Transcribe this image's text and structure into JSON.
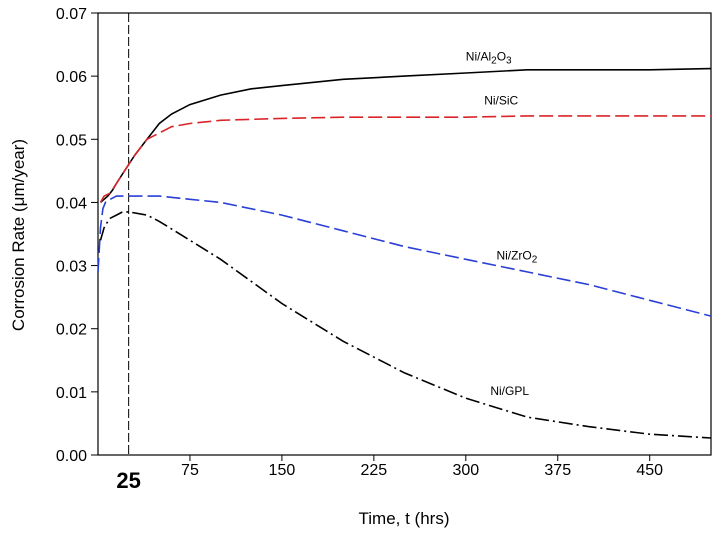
{
  "chart_data": {
    "type": "line",
    "xlabel": "Time, t (hrs)",
    "ylabel": "Corrosion Rate (μm/year)",
    "xlim": [
      0,
      500
    ],
    "ylim": [
      0,
      0.07
    ],
    "x_ticks": [
      75,
      150,
      225,
      300,
      375,
      450
    ],
    "y_ticks": [
      "0.00",
      "0.01",
      "0.02",
      "0.03",
      "0.04",
      "0.05",
      "0.06",
      "0.07"
    ],
    "grid": false,
    "marker_line": {
      "x": 25,
      "label": "25"
    },
    "series": [
      {
        "name": "Ni/Al2O3",
        "color": "#000000",
        "style": "solid",
        "x": [
          2,
          5,
          8,
          10,
          12,
          15,
          20,
          25,
          30,
          40,
          50,
          60,
          75,
          100,
          125,
          150,
          200,
          250,
          300,
          350,
          400,
          450,
          500
        ],
        "y": [
          0.04,
          0.0405,
          0.041,
          0.0415,
          0.042,
          0.043,
          0.0445,
          0.046,
          0.0475,
          0.05,
          0.0525,
          0.054,
          0.0555,
          0.057,
          0.058,
          0.0585,
          0.0595,
          0.06,
          0.0605,
          0.061,
          0.061,
          0.061,
          0.0612
        ]
      },
      {
        "name": "Ni/SiC",
        "color": "#d9252a",
        "style": "dashed",
        "x": [
          2,
          5,
          10,
          15,
          20,
          25,
          30,
          40,
          50,
          60,
          75,
          100,
          150,
          200,
          250,
          300,
          350,
          400,
          450,
          500
        ],
        "y": [
          0.04,
          0.041,
          0.0415,
          0.043,
          0.0445,
          0.046,
          0.0475,
          0.05,
          0.051,
          0.052,
          0.0525,
          0.053,
          0.0533,
          0.0535,
          0.0535,
          0.0535,
          0.0537,
          0.0537,
          0.0537,
          0.0537
        ]
      },
      {
        "name": "Ni/ZrO2",
        "color": "#2a3fd6",
        "style": "dashed",
        "x": [
          0,
          2,
          4,
          6,
          10,
          15,
          20,
          30,
          50,
          75,
          100,
          150,
          200,
          250,
          300,
          350,
          400,
          450,
          500
        ],
        "y": [
          0.029,
          0.036,
          0.039,
          0.04,
          0.0405,
          0.041,
          0.041,
          0.041,
          0.041,
          0.0405,
          0.04,
          0.038,
          0.0355,
          0.033,
          0.031,
          0.029,
          0.027,
          0.0245,
          0.022
        ]
      },
      {
        "name": "Ni/GPL",
        "color": "#000000",
        "style": "dashdot",
        "x": [
          2,
          5,
          8,
          10,
          15,
          20,
          25,
          40,
          50,
          75,
          100,
          150,
          200,
          250,
          300,
          350,
          400,
          450,
          500
        ],
        "y": [
          0.034,
          0.036,
          0.037,
          0.0375,
          0.038,
          0.0385,
          0.0385,
          0.038,
          0.037,
          0.034,
          0.031,
          0.024,
          0.018,
          0.013,
          0.009,
          0.006,
          0.0045,
          0.0033,
          0.0027
        ]
      }
    ],
    "series_labels": [
      {
        "text": "Ni/Al",
        "sub": "2",
        "text2": "O",
        "sub2": "3",
        "at": [
          300,
          0.0625
        ]
      },
      {
        "text": "Ni/SiC",
        "sub": "",
        "text2": "",
        "sub2": "",
        "at": [
          315,
          0.0555
        ]
      },
      {
        "text": "Ni/ZrO",
        "sub": "2",
        "text2": "",
        "sub2": "",
        "at": [
          325,
          0.031
        ]
      },
      {
        "text": "Ni/GPL",
        "sub": "",
        "text2": "",
        "sub2": "",
        "at": [
          320,
          0.0095
        ]
      }
    ]
  }
}
